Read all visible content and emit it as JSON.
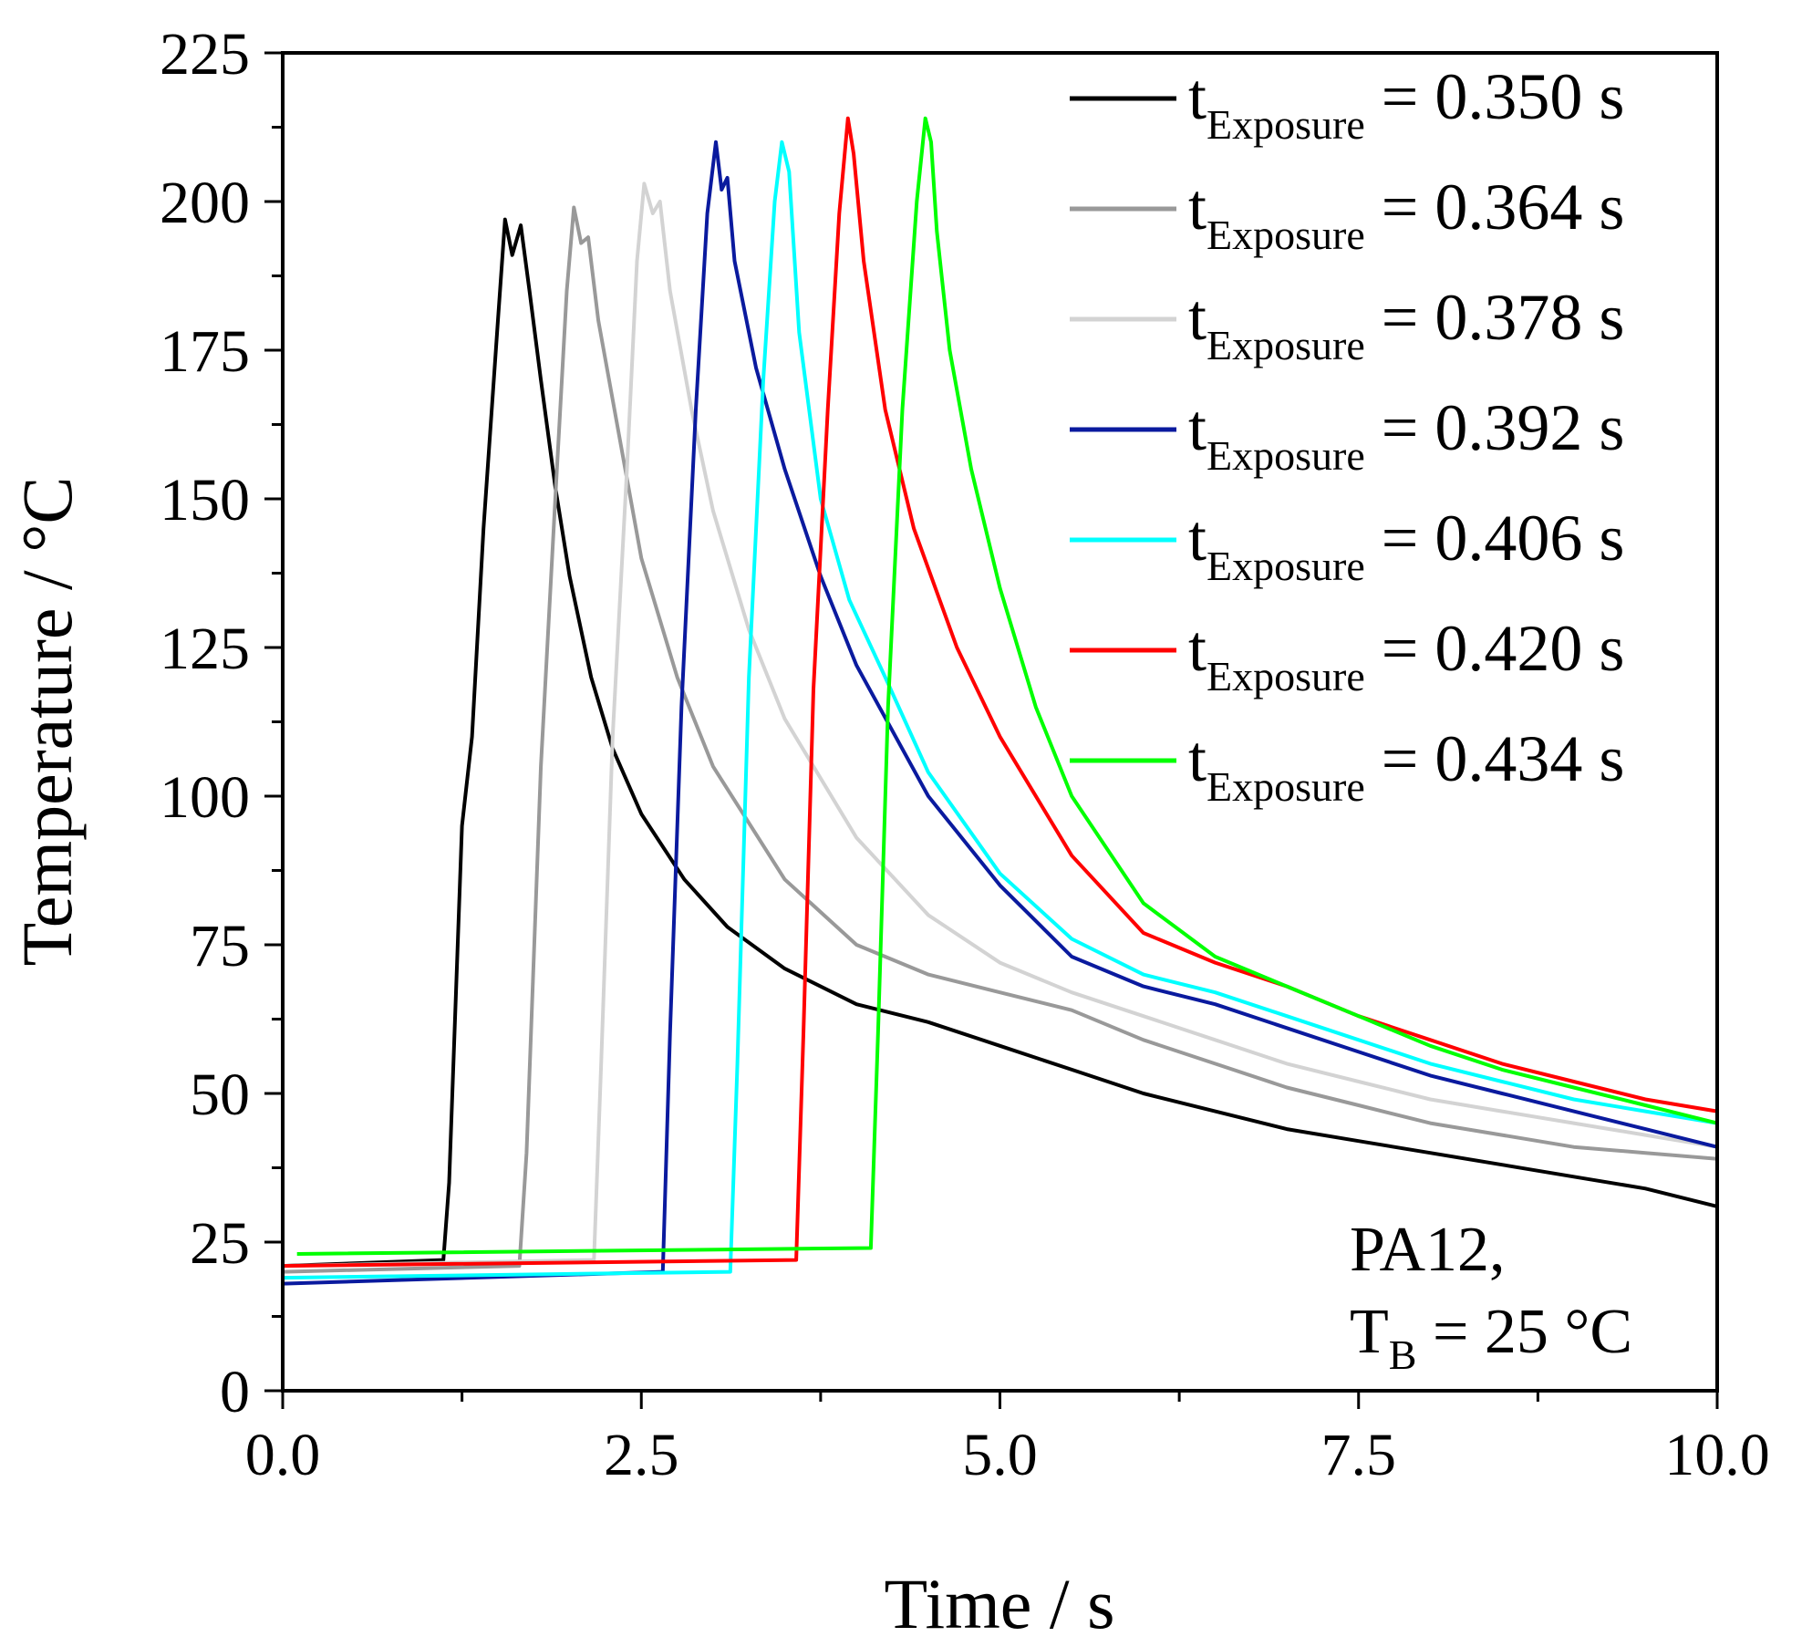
{
  "chart_data": {
    "type": "line",
    "xlabel": "Time / s",
    "ylabel": "Temperature / °C",
    "xlim": [
      0,
      10
    ],
    "ylim": [
      0,
      225
    ],
    "xticks": [
      "0.0",
      "2.5",
      "5.0",
      "7.5",
      "10.0"
    ],
    "yticks": [
      "0",
      "25",
      "50",
      "75",
      "100",
      "125",
      "150",
      "175",
      "200",
      "225"
    ],
    "legend_position": "top-right",
    "annotation": {
      "line1": "PA12,",
      "line2_main": "T",
      "line2_sub": "B",
      "line2_rest": " = 25 °C"
    },
    "series": [
      {
        "label_main": "t",
        "label_sub": "Exposure",
        "label_value": " = 0.350 s",
        "color": "#000000",
        "x": [
          0,
          1.12,
          1.16,
          1.25,
          1.32,
          1.4,
          1.5,
          1.55,
          1.6,
          1.66,
          1.72,
          1.8,
          1.9,
          2.0,
          2.15,
          2.3,
          2.5,
          2.8,
          3.1,
          3.5,
          4.0,
          4.5,
          5.0,
          5.5,
          6.0,
          6.5,
          7.0,
          7.5,
          8.0,
          8.5,
          9.0,
          9.5,
          10.0
        ],
        "y": [
          21,
          22,
          35,
          95,
          110,
          145,
          180,
          197,
          191,
          196,
          185,
          170,
          152,
          137,
          120,
          108,
          97,
          86,
          78,
          71,
          65,
          62,
          58,
          54,
          50,
          47,
          44,
          42,
          40,
          38,
          36,
          34,
          31
        ]
      },
      {
        "label_main": "t",
        "label_sub": "Exposure",
        "label_value": " = 0.364 s",
        "color": "#999999",
        "x": [
          0,
          1.65,
          1.7,
          1.8,
          1.9,
          1.98,
          2.03,
          2.08,
          2.13,
          2.2,
          2.35,
          2.5,
          2.75,
          3.0,
          3.5,
          4.0,
          4.5,
          5.0,
          5.5,
          6.0,
          6.5,
          7.0,
          7.5,
          8.0,
          8.5,
          9.0,
          9.5,
          10.0
        ],
        "y": [
          20,
          21,
          40,
          105,
          150,
          185,
          199,
          193,
          194,
          180,
          160,
          140,
          120,
          105,
          86,
          75,
          70,
          67,
          64,
          59,
          55,
          51,
          48,
          45,
          43,
          41,
          40,
          39
        ]
      },
      {
        "label_main": "t",
        "label_sub": "Exposure",
        "label_value": " = 0.378 s",
        "color": "#d3d3d3",
        "x": [
          0,
          2.17,
          2.22,
          2.3,
          2.4,
          2.47,
          2.52,
          2.58,
          2.63,
          2.7,
          2.85,
          3.0,
          3.25,
          3.5,
          4.0,
          4.5,
          5.0,
          5.5,
          6.0,
          6.5,
          7.0,
          7.5,
          8.0,
          8.5,
          9.0,
          9.5,
          10.0
        ],
        "y": [
          21,
          22,
          55,
          110,
          155,
          190,
          203,
          198,
          200,
          185,
          165,
          148,
          128,
          113,
          93,
          80,
          72,
          67,
          63,
          59,
          55,
          52,
          49,
          47,
          45,
          43,
          41
        ]
      },
      {
        "label_main": "t",
        "label_sub": "Exposure",
        "label_value": " = 0.392 s",
        "color": "#0a1a9e",
        "x": [
          0,
          2.65,
          2.7,
          2.78,
          2.88,
          2.96,
          3.02,
          3.06,
          3.1,
          3.15,
          3.3,
          3.5,
          3.75,
          4.0,
          4.5,
          5.0,
          5.5,
          6.0,
          6.5,
          7.0,
          7.5,
          8.0,
          8.5,
          9.0,
          9.5,
          10.0
        ],
        "y": [
          18,
          20,
          60,
          115,
          165,
          198,
          210,
          202,
          204,
          190,
          172,
          155,
          137,
          122,
          100,
          85,
          73,
          68,
          65,
          61,
          57,
          53,
          50,
          47,
          44,
          41
        ]
      },
      {
        "label_main": "t",
        "label_sub": "Exposure",
        "label_value": " = 0.406 s",
        "color": "#00ffff",
        "x": [
          0,
          3.12,
          3.17,
          3.25,
          3.35,
          3.43,
          3.48,
          3.53,
          3.6,
          3.75,
          3.95,
          4.2,
          4.5,
          5.0,
          5.5,
          6.0,
          6.5,
          7.0,
          7.5,
          8.0,
          8.5,
          9.0,
          9.5,
          10.0
        ],
        "y": [
          19,
          20,
          55,
          120,
          170,
          200,
          210,
          205,
          178,
          150,
          133,
          120,
          104,
          87,
          76,
          70,
          67,
          63,
          59,
          55,
          52,
          49,
          47,
          45
        ]
      },
      {
        "label_main": "t",
        "label_sub": "Exposure",
        "label_value": " = 0.420 s",
        "color": "#ff0000",
        "x": [
          0,
          3.58,
          3.63,
          3.7,
          3.8,
          3.88,
          3.94,
          3.98,
          4.05,
          4.2,
          4.4,
          4.7,
          5.0,
          5.5,
          6.0,
          6.5,
          7.0,
          7.5,
          8.0,
          8.5,
          9.0,
          9.5,
          10.0
        ],
        "y": [
          21,
          22,
          60,
          118,
          165,
          198,
          214,
          208,
          190,
          165,
          145,
          125,
          110,
          90,
          77,
          72,
          68,
          63,
          59,
          55,
          52,
          49,
          47
        ]
      },
      {
        "label_main": "t",
        "label_sub": "Exposure",
        "label_value": " = 0.434 s",
        "color": "#00ff00",
        "x": [
          0.1,
          4.1,
          4.15,
          4.22,
          4.32,
          4.42,
          4.48,
          4.52,
          4.56,
          4.65,
          4.8,
          5.0,
          5.25,
          5.5,
          6.0,
          6.5,
          7.0,
          7.5,
          8.0,
          8.5,
          9.0,
          9.5,
          10.0
        ],
        "y": [
          23,
          24,
          60,
          115,
          165,
          200,
          214,
          210,
          195,
          175,
          155,
          135,
          115,
          100,
          82,
          73,
          68,
          63,
          58,
          54,
          51,
          48,
          45
        ]
      }
    ]
  }
}
